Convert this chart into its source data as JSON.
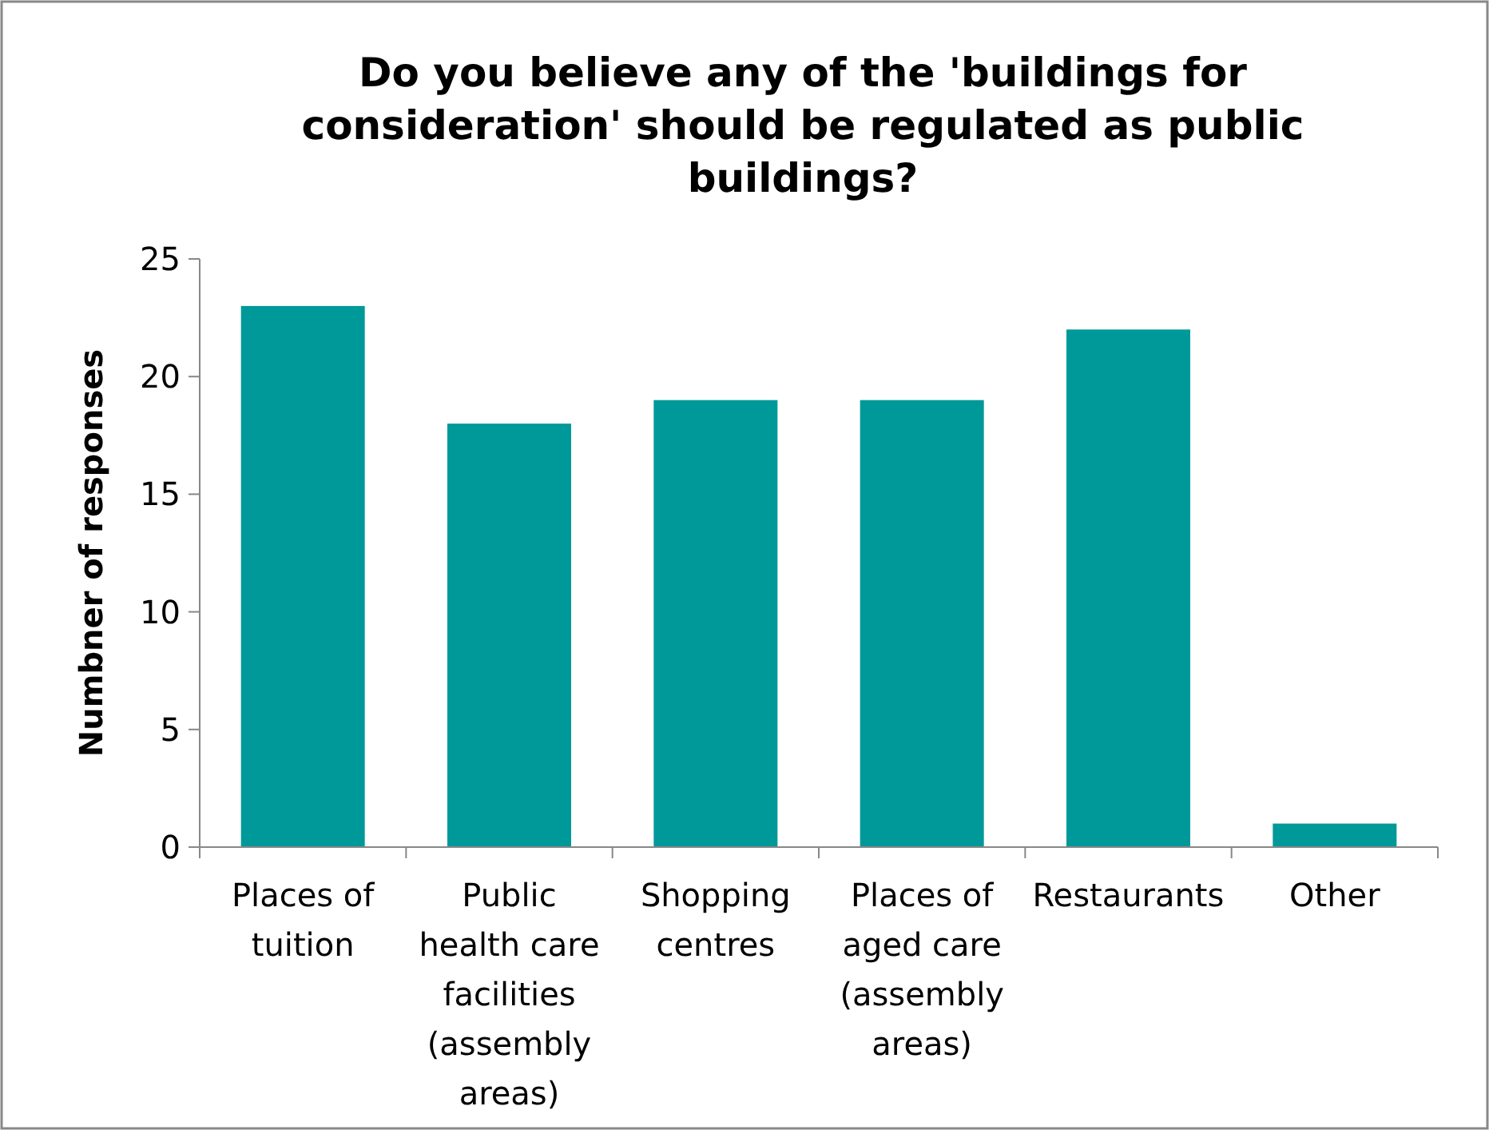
{
  "chart_data": {
    "type": "bar",
    "title": "Do you believe any of the 'buildings for consideration' should be regulated as public buildings?",
    "ylabel": "Numbner of responses",
    "categories": [
      "Places of tuition",
      "Public health care facilities (assembly areas)",
      "Shopping centres",
      "Places of aged care (assembly areas)",
      "Restaurants",
      "Other"
    ],
    "values": [
      23,
      18,
      19,
      19,
      22,
      1
    ],
    "color": "#009999",
    "ylim": [
      0,
      25
    ],
    "yticks": [
      0,
      5,
      10,
      15,
      20,
      25
    ],
    "grid": false
  }
}
